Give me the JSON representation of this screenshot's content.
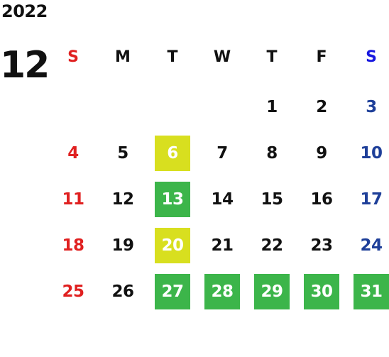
{
  "calendar": {
    "year": "2022",
    "month": "12",
    "weekdays": [
      "S",
      "M",
      "T",
      "W",
      "T",
      "F",
      "S"
    ],
    "colors": {
      "sunday": "#e02020",
      "saturday": "#1e3f99",
      "saturday_header": "#1818e0",
      "weekday": "#111111",
      "highlight_green": "#3cb54a",
      "highlight_yellow": "#d8df1f"
    },
    "days": [
      {
        "day": "1",
        "col": 4
      },
      {
        "day": "2",
        "col": 5
      },
      {
        "day": "3",
        "col": 6
      },
      {
        "day": "4",
        "col": 0
      },
      {
        "day": "5",
        "col": 1
      },
      {
        "day": "6",
        "col": 2,
        "highlight": "yellow"
      },
      {
        "day": "7",
        "col": 3
      },
      {
        "day": "8",
        "col": 4
      },
      {
        "day": "9",
        "col": 5
      },
      {
        "day": "10",
        "col": 6
      },
      {
        "day": "11",
        "col": 0
      },
      {
        "day": "12",
        "col": 1
      },
      {
        "day": "13",
        "col": 2,
        "highlight": "green"
      },
      {
        "day": "14",
        "col": 3
      },
      {
        "day": "15",
        "col": 4
      },
      {
        "day": "16",
        "col": 5
      },
      {
        "day": "17",
        "col": 6
      },
      {
        "day": "18",
        "col": 0
      },
      {
        "day": "19",
        "col": 1
      },
      {
        "day": "20",
        "col": 2,
        "highlight": "yellow"
      },
      {
        "day": "21",
        "col": 3
      },
      {
        "day": "22",
        "col": 4
      },
      {
        "day": "23",
        "col": 5
      },
      {
        "day": "24",
        "col": 6
      },
      {
        "day": "25",
        "col": 0
      },
      {
        "day": "26",
        "col": 1
      },
      {
        "day": "27",
        "col": 2,
        "highlight": "green"
      },
      {
        "day": "28",
        "col": 3,
        "highlight": "green"
      },
      {
        "day": "29",
        "col": 4,
        "highlight": "green"
      },
      {
        "day": "30",
        "col": 5,
        "highlight": "green"
      },
      {
        "day": "31",
        "col": 6,
        "highlight": "green"
      }
    ]
  }
}
